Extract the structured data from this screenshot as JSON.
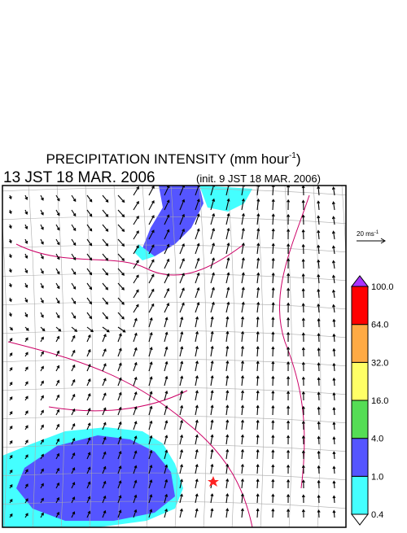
{
  "header": {
    "title": "PRECIPITATION INTENSITY (mm hour",
    "title_exponent": "-1",
    "title_close": ")",
    "valid_time": "13 JST 18 MAR. 2006",
    "init_time": "(init. 9 JST 18 MAR. 2006)"
  },
  "wind_reference": {
    "label": "20 ms",
    "exponent": "-1"
  },
  "colorbar": {
    "levels": [
      "0.4",
      "1.0",
      "4.0",
      "16.0",
      "32.0",
      "64.0",
      "100.0"
    ],
    "colors": [
      "#ffffff",
      "#44ffff",
      "#5555ff",
      "#55dd55",
      "#ffff66",
      "#ffaa44",
      "#ff0000",
      "#aa33ff"
    ]
  }
}
